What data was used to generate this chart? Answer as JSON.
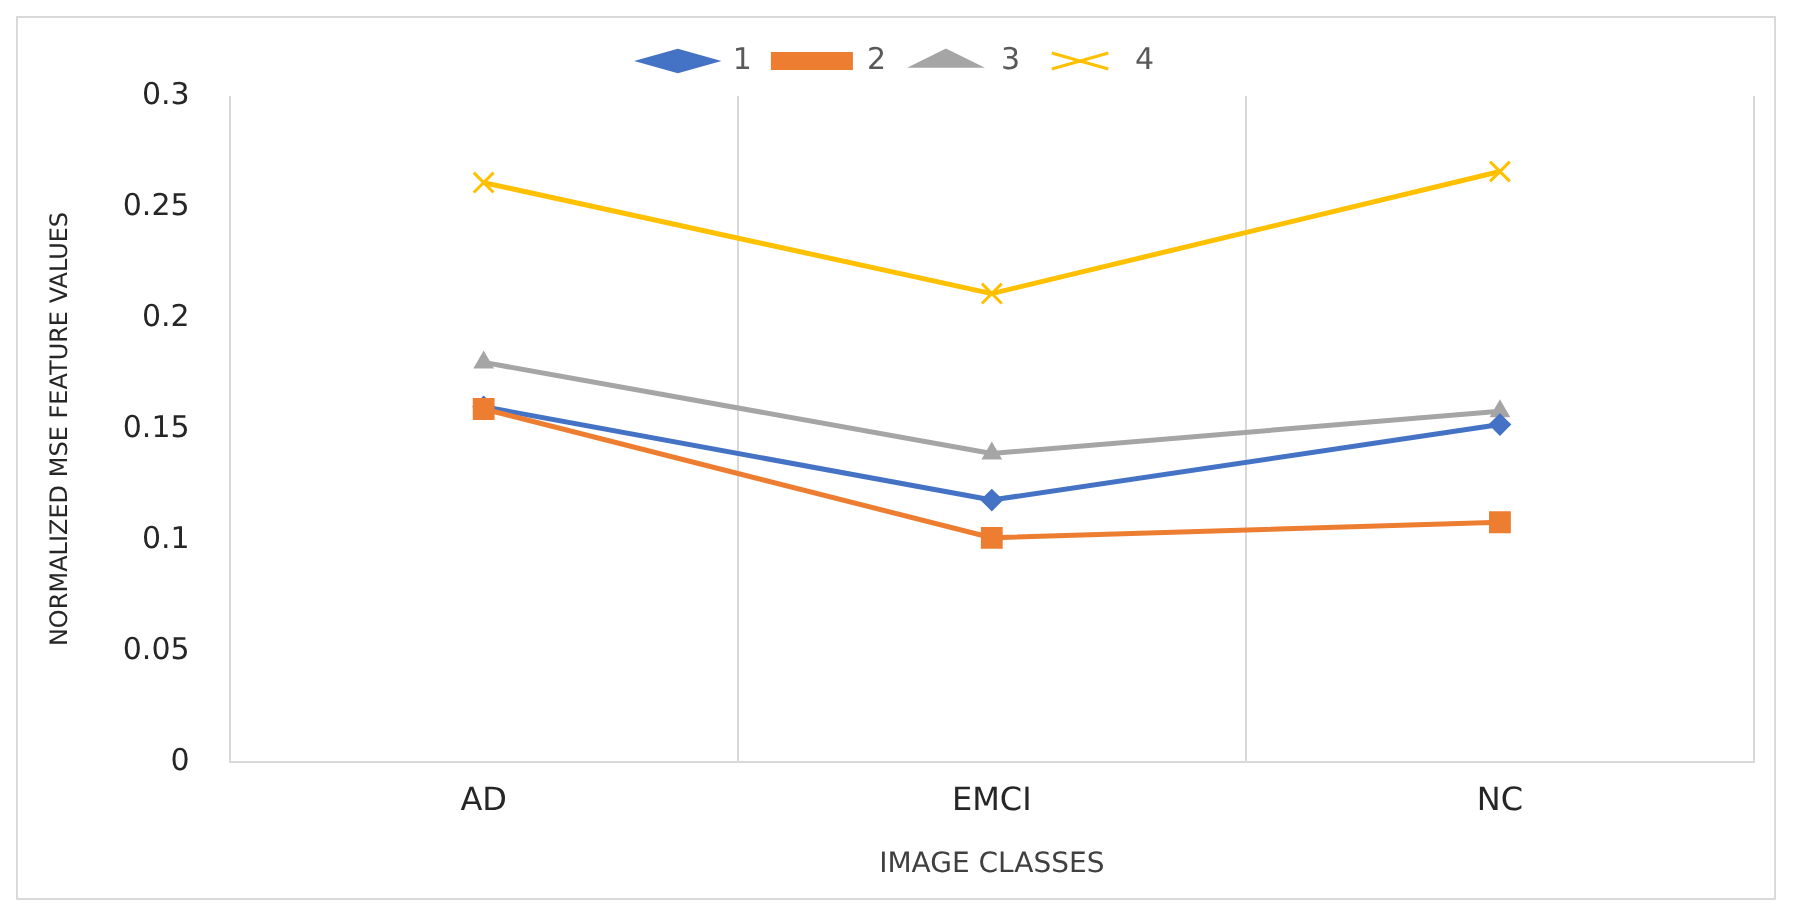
{
  "chart_data": {
    "type": "line",
    "xlabel": "IMAGE CLASSES",
    "ylabel": "NORMALIZED MSE FEATURE VALUES",
    "categories": [
      "AD",
      "EMCI",
      "NC"
    ],
    "series": [
      {
        "name": "1",
        "color": "#4472c4",
        "marker": "diamond",
        "values": [
          0.16,
          0.118,
          0.152
        ]
      },
      {
        "name": "2",
        "color": "#ed7d31",
        "marker": "square",
        "values": [
          0.159,
          0.101,
          0.108
        ]
      },
      {
        "name": "3",
        "color": "#a5a5a5",
        "marker": "triangle",
        "values": [
          0.18,
          0.139,
          0.158
        ]
      },
      {
        "name": "4",
        "color": "#ffc000",
        "marker": "cross",
        "values": [
          0.261,
          0.211,
          0.266
        ]
      }
    ],
    "ylim": [
      0,
      0.3
    ],
    "yticks": [
      0,
      0.05,
      0.1,
      0.15,
      0.2,
      0.25,
      0.3
    ],
    "grid": "x",
    "legend": "top"
  }
}
